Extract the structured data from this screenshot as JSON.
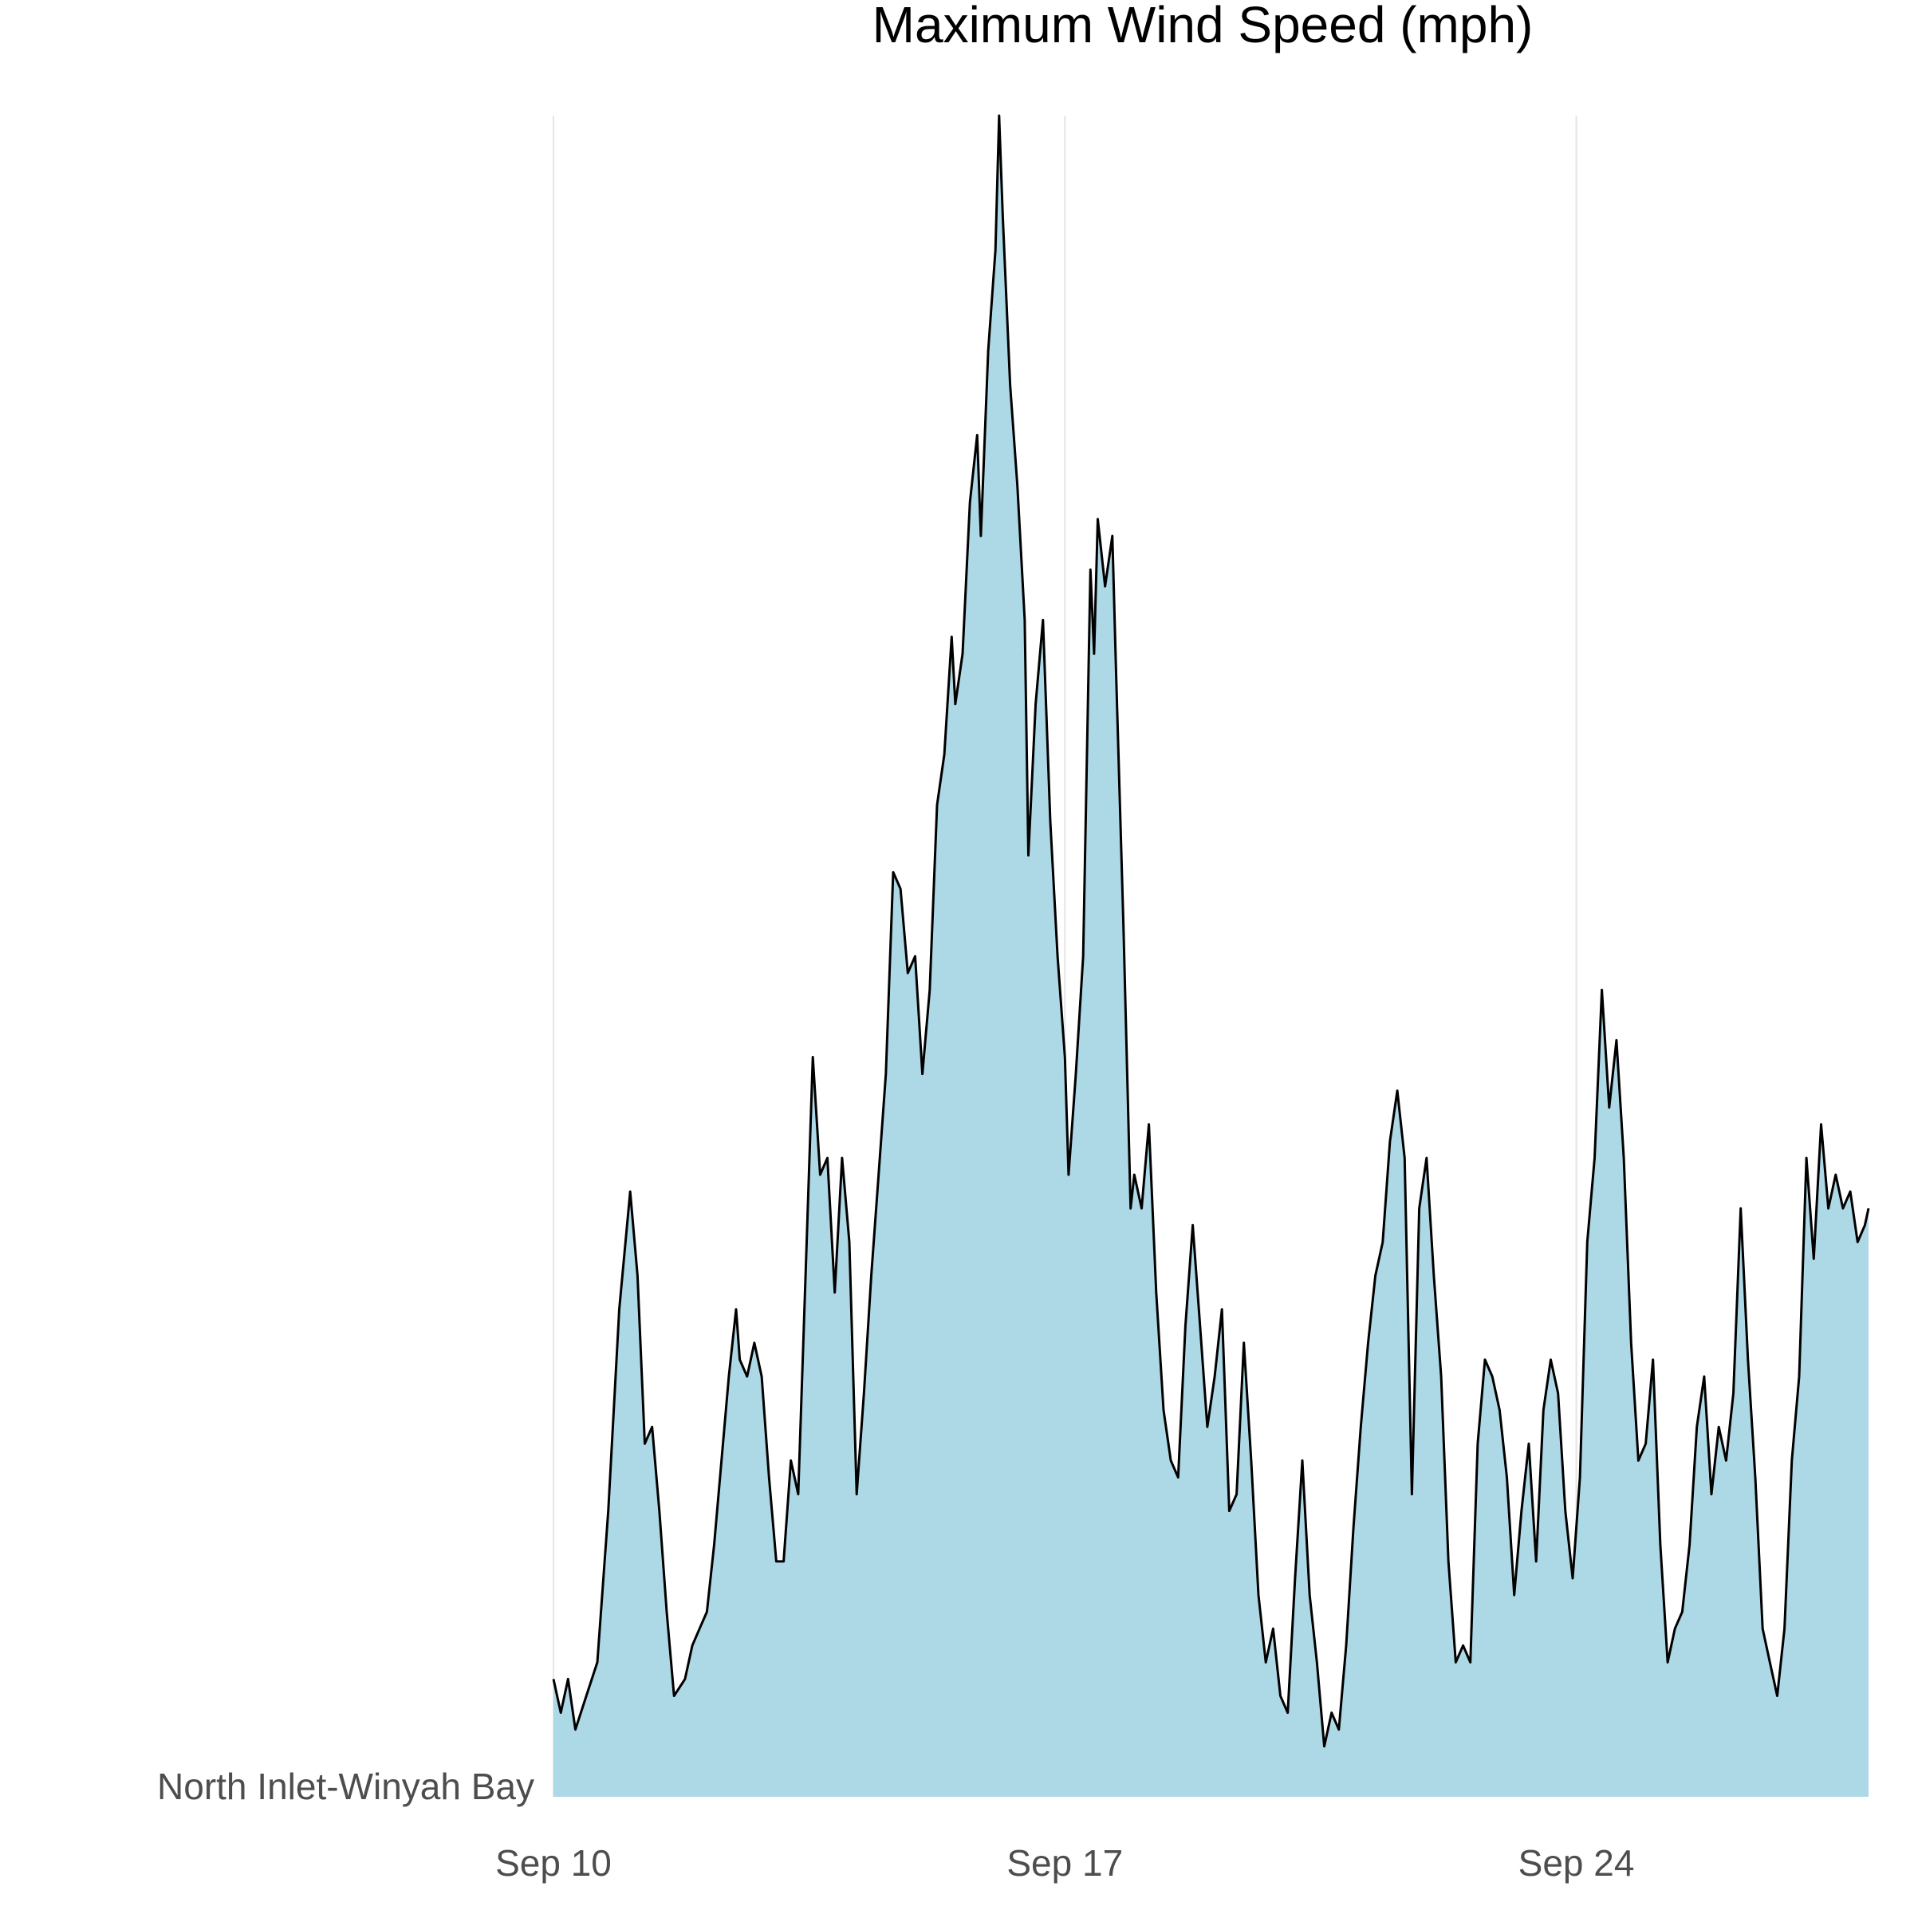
{
  "chart_data": {
    "type": "area",
    "title": "Maximum Wind Speed (mph)",
    "xlabel": "",
    "ylabel": "",
    "row_label": "North Inlet-Winyah Bay",
    "x_ticks": [
      "Sep 10",
      "Sep 17",
      "Sep 24"
    ],
    "x_tick_days": [
      0,
      7,
      14
    ],
    "x_range_days": [
      0,
      18
    ],
    "y_range": [
      0,
      1
    ],
    "y_axis_shown": false,
    "grid": "vertical major gridlines only",
    "legend": "none",
    "colors": {
      "fill": "#add8e6",
      "line": "#000000",
      "grid": "#e5e5e5"
    },
    "series": [
      {
        "values_note": "relative height, 0 = baseline, 1 = peak",
        "points": [
          [
            0.0,
            0.07
          ],
          [
            0.1,
            0.05
          ],
          [
            0.2,
            0.07
          ],
          [
            0.3,
            0.04
          ],
          [
            0.45,
            0.06
          ],
          [
            0.6,
            0.08
          ],
          [
            0.75,
            0.17
          ],
          [
            0.9,
            0.29
          ],
          [
            1.05,
            0.36
          ],
          [
            1.15,
            0.31
          ],
          [
            1.25,
            0.21
          ],
          [
            1.35,
            0.22
          ],
          [
            1.45,
            0.17
          ],
          [
            1.55,
            0.11
          ],
          [
            1.65,
            0.06
          ],
          [
            1.8,
            0.07
          ],
          [
            1.9,
            0.09
          ],
          [
            2.0,
            0.1
          ],
          [
            2.1,
            0.11
          ],
          [
            2.2,
            0.15
          ],
          [
            2.3,
            0.2
          ],
          [
            2.4,
            0.25
          ],
          [
            2.5,
            0.29
          ],
          [
            2.55,
            0.26
          ],
          [
            2.65,
            0.25
          ],
          [
            2.75,
            0.27
          ],
          [
            2.85,
            0.25
          ],
          [
            2.95,
            0.19
          ],
          [
            3.05,
            0.14
          ],
          [
            3.15,
            0.14
          ],
          [
            3.25,
            0.2
          ],
          [
            3.35,
            0.18
          ],
          [
            3.45,
            0.31
          ],
          [
            3.55,
            0.44
          ],
          [
            3.65,
            0.37
          ],
          [
            3.75,
            0.38
          ],
          [
            3.85,
            0.3
          ],
          [
            3.95,
            0.38
          ],
          [
            4.05,
            0.33
          ],
          [
            4.15,
            0.18
          ],
          [
            4.25,
            0.24
          ],
          [
            4.35,
            0.31
          ],
          [
            4.45,
            0.37
          ],
          [
            4.55,
            0.43
          ],
          [
            4.65,
            0.55
          ],
          [
            4.75,
            0.54
          ],
          [
            4.85,
            0.49
          ],
          [
            4.95,
            0.5
          ],
          [
            5.05,
            0.43
          ],
          [
            5.15,
            0.48
          ],
          [
            5.25,
            0.59
          ],
          [
            5.35,
            0.62
          ],
          [
            5.45,
            0.69
          ],
          [
            5.5,
            0.65
          ],
          [
            5.6,
            0.68
          ],
          [
            5.7,
            0.77
          ],
          [
            5.8,
            0.81
          ],
          [
            5.85,
            0.75
          ],
          [
            5.95,
            0.86
          ],
          [
            6.05,
            0.92
          ],
          [
            6.1,
            1.0
          ],
          [
            6.15,
            0.94
          ],
          [
            6.25,
            0.84
          ],
          [
            6.35,
            0.78
          ],
          [
            6.45,
            0.7
          ],
          [
            6.5,
            0.56
          ],
          [
            6.6,
            0.65
          ],
          [
            6.7,
            0.7
          ],
          [
            6.8,
            0.58
          ],
          [
            6.9,
            0.5
          ],
          [
            7.0,
            0.44
          ],
          [
            7.05,
            0.37
          ],
          [
            7.15,
            0.43
          ],
          [
            7.25,
            0.5
          ],
          [
            7.35,
            0.73
          ],
          [
            7.4,
            0.68
          ],
          [
            7.45,
            0.76
          ],
          [
            7.55,
            0.72
          ],
          [
            7.65,
            0.75
          ],
          [
            7.7,
            0.67
          ],
          [
            7.8,
            0.52
          ],
          [
            7.9,
            0.35
          ],
          [
            7.95,
            0.37
          ],
          [
            8.05,
            0.35
          ],
          [
            8.15,
            0.4
          ],
          [
            8.25,
            0.3
          ],
          [
            8.35,
            0.23
          ],
          [
            8.45,
            0.2
          ],
          [
            8.55,
            0.19
          ],
          [
            8.65,
            0.28
          ],
          [
            8.75,
            0.34
          ],
          [
            8.85,
            0.28
          ],
          [
            8.95,
            0.22
          ],
          [
            9.05,
            0.25
          ],
          [
            9.15,
            0.29
          ],
          [
            9.25,
            0.17
          ],
          [
            9.35,
            0.18
          ],
          [
            9.45,
            0.27
          ],
          [
            9.55,
            0.2
          ],
          [
            9.65,
            0.12
          ],
          [
            9.75,
            0.08
          ],
          [
            9.85,
            0.1
          ],
          [
            9.95,
            0.06
          ],
          [
            10.05,
            0.05
          ],
          [
            10.15,
            0.13
          ],
          [
            10.25,
            0.2
          ],
          [
            10.35,
            0.12
          ],
          [
            10.45,
            0.08
          ],
          [
            10.55,
            0.03
          ],
          [
            10.65,
            0.05
          ],
          [
            10.75,
            0.04
          ],
          [
            10.85,
            0.09
          ],
          [
            10.95,
            0.16
          ],
          [
            11.05,
            0.22
          ],
          [
            11.15,
            0.27
          ],
          [
            11.25,
            0.31
          ],
          [
            11.35,
            0.33
          ],
          [
            11.45,
            0.39
          ],
          [
            11.55,
            0.42
          ],
          [
            11.65,
            0.38
          ],
          [
            11.75,
            0.18
          ],
          [
            11.85,
            0.35
          ],
          [
            11.95,
            0.38
          ],
          [
            12.05,
            0.31
          ],
          [
            12.15,
            0.25
          ],
          [
            12.25,
            0.14
          ],
          [
            12.35,
            0.08
          ],
          [
            12.45,
            0.09
          ],
          [
            12.55,
            0.08
          ],
          [
            12.65,
            0.21
          ],
          [
            12.75,
            0.26
          ],
          [
            12.85,
            0.25
          ],
          [
            12.95,
            0.23
          ],
          [
            13.05,
            0.19
          ],
          [
            13.15,
            0.12
          ],
          [
            13.25,
            0.17
          ],
          [
            13.35,
            0.21
          ],
          [
            13.45,
            0.14
          ],
          [
            13.55,
            0.23
          ],
          [
            13.65,
            0.26
          ],
          [
            13.75,
            0.24
          ],
          [
            13.85,
            0.17
          ],
          [
            13.95,
            0.13
          ],
          [
            14.05,
            0.19
          ],
          [
            14.15,
            0.33
          ],
          [
            14.25,
            0.38
          ],
          [
            14.35,
            0.48
          ],
          [
            14.45,
            0.41
          ],
          [
            14.55,
            0.45
          ],
          [
            14.65,
            0.38
          ],
          [
            14.75,
            0.27
          ],
          [
            14.85,
            0.2
          ],
          [
            14.95,
            0.21
          ],
          [
            15.05,
            0.26
          ],
          [
            15.15,
            0.15
          ],
          [
            15.25,
            0.08
          ],
          [
            15.35,
            0.1
          ],
          [
            15.45,
            0.11
          ],
          [
            15.55,
            0.15
          ],
          [
            15.65,
            0.22
          ],
          [
            15.75,
            0.25
          ],
          [
            15.85,
            0.18
          ],
          [
            15.95,
            0.22
          ],
          [
            16.05,
            0.2
          ],
          [
            16.15,
            0.24
          ],
          [
            16.25,
            0.35
          ],
          [
            16.35,
            0.26
          ],
          [
            16.45,
            0.19
          ],
          [
            16.55,
            0.1
          ],
          [
            16.65,
            0.08
          ],
          [
            16.75,
            0.06
          ],
          [
            16.85,
            0.1
          ],
          [
            16.95,
            0.2
          ],
          [
            17.05,
            0.25
          ],
          [
            17.15,
            0.38
          ],
          [
            17.25,
            0.32
          ],
          [
            17.35,
            0.4
          ],
          [
            17.45,
            0.35
          ],
          [
            17.55,
            0.37
          ],
          [
            17.65,
            0.35
          ],
          [
            17.75,
            0.36
          ],
          [
            17.85,
            0.33
          ],
          [
            17.95,
            0.34
          ],
          [
            18.0,
            0.35
          ]
        ]
      }
    ]
  }
}
